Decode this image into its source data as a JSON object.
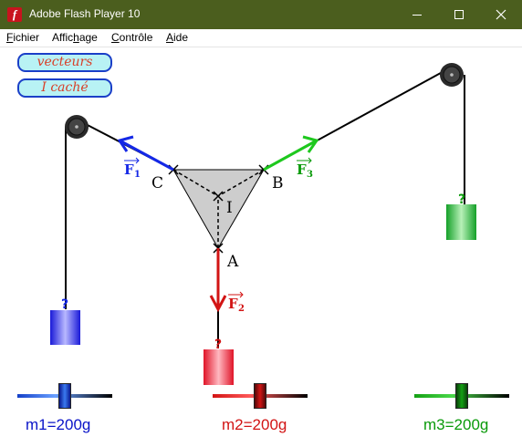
{
  "window": {
    "title": "Adobe Flash Player 10",
    "icon": "flash-player-icon"
  },
  "window_controls": [
    "minimize-icon",
    "maximize-icon",
    "close-icon"
  ],
  "menu": [
    {
      "label": "Fichier",
      "mnemonic": "F"
    },
    {
      "label": "Affichage",
      "mnemonic": "h"
    },
    {
      "label": "Contrôle",
      "mnemonic": "C"
    },
    {
      "label": "Aide",
      "mnemonic": "A"
    }
  ],
  "buttons": {
    "vectors": "vecteurs",
    "hidden": "I caché"
  },
  "diagram": {
    "points": {
      "A": "A",
      "B": "B",
      "C": "C",
      "I": "I"
    },
    "forces": {
      "f1": "F",
      "f1_sub": "1",
      "f2": "F",
      "f2_sub": "2",
      "f3": "F",
      "f3_sub": "3"
    },
    "unknown_mark": "?"
  },
  "masses": [
    {
      "label": "m1=200g",
      "color": "#0a14c8",
      "slider": 0.5
    },
    {
      "label": "m2=200g",
      "color": "#d21414",
      "slider": 0.5
    },
    {
      "label": "m3=200g",
      "color": "#0a9a0a",
      "slider": 0.5
    }
  ],
  "colors": {
    "titlebar": "#4b5e1e",
    "blue": "#1428e6",
    "red": "#d21414",
    "green": "#1ec81e"
  }
}
